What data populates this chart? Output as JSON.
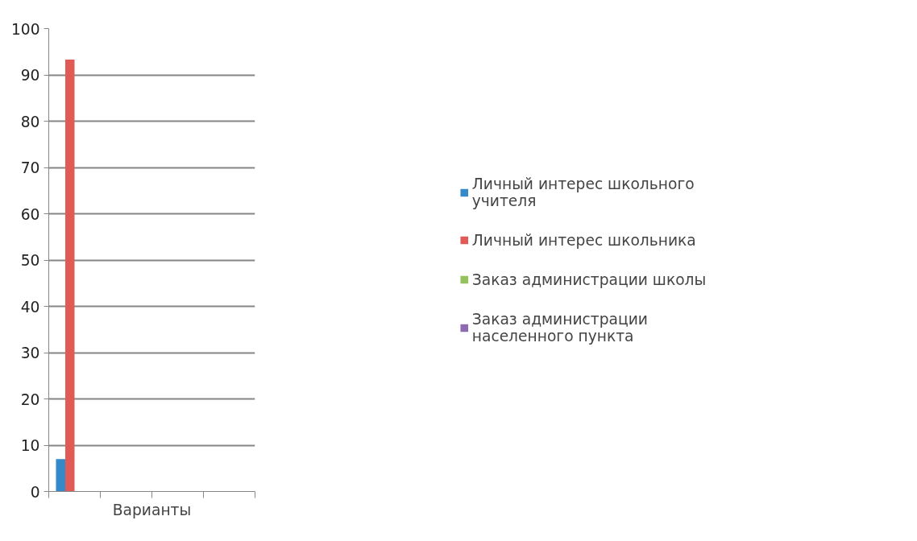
{
  "chart_data": {
    "type": "bar",
    "xlabel": "Варианты",
    "categories": [
      null,
      null,
      null,
      null
    ],
    "series": [
      {
        "name": "Личный интерес школьного учителя",
        "color": "#3489c9",
        "values": [
          7,
          null,
          null,
          null
        ]
      },
      {
        "name": "Личный интерес школьника",
        "color": "#e15b56",
        "values": [
          93.3,
          null,
          null,
          null
        ]
      },
      {
        "name": "Заказ администрации школы",
        "color": "#93c35a",
        "values": [
          0,
          null,
          null,
          null
        ]
      },
      {
        "name": "Заказ администрации населенного пункта",
        "color": "#8e6bb0",
        "values": [
          0,
          null,
          null,
          null
        ]
      }
    ],
    "ylim": [
      0,
      100
    ],
    "yticks": [
      0,
      10,
      20,
      30,
      40,
      50,
      60,
      70,
      80,
      90,
      100
    ],
    "grid": "y",
    "legend": "right"
  }
}
